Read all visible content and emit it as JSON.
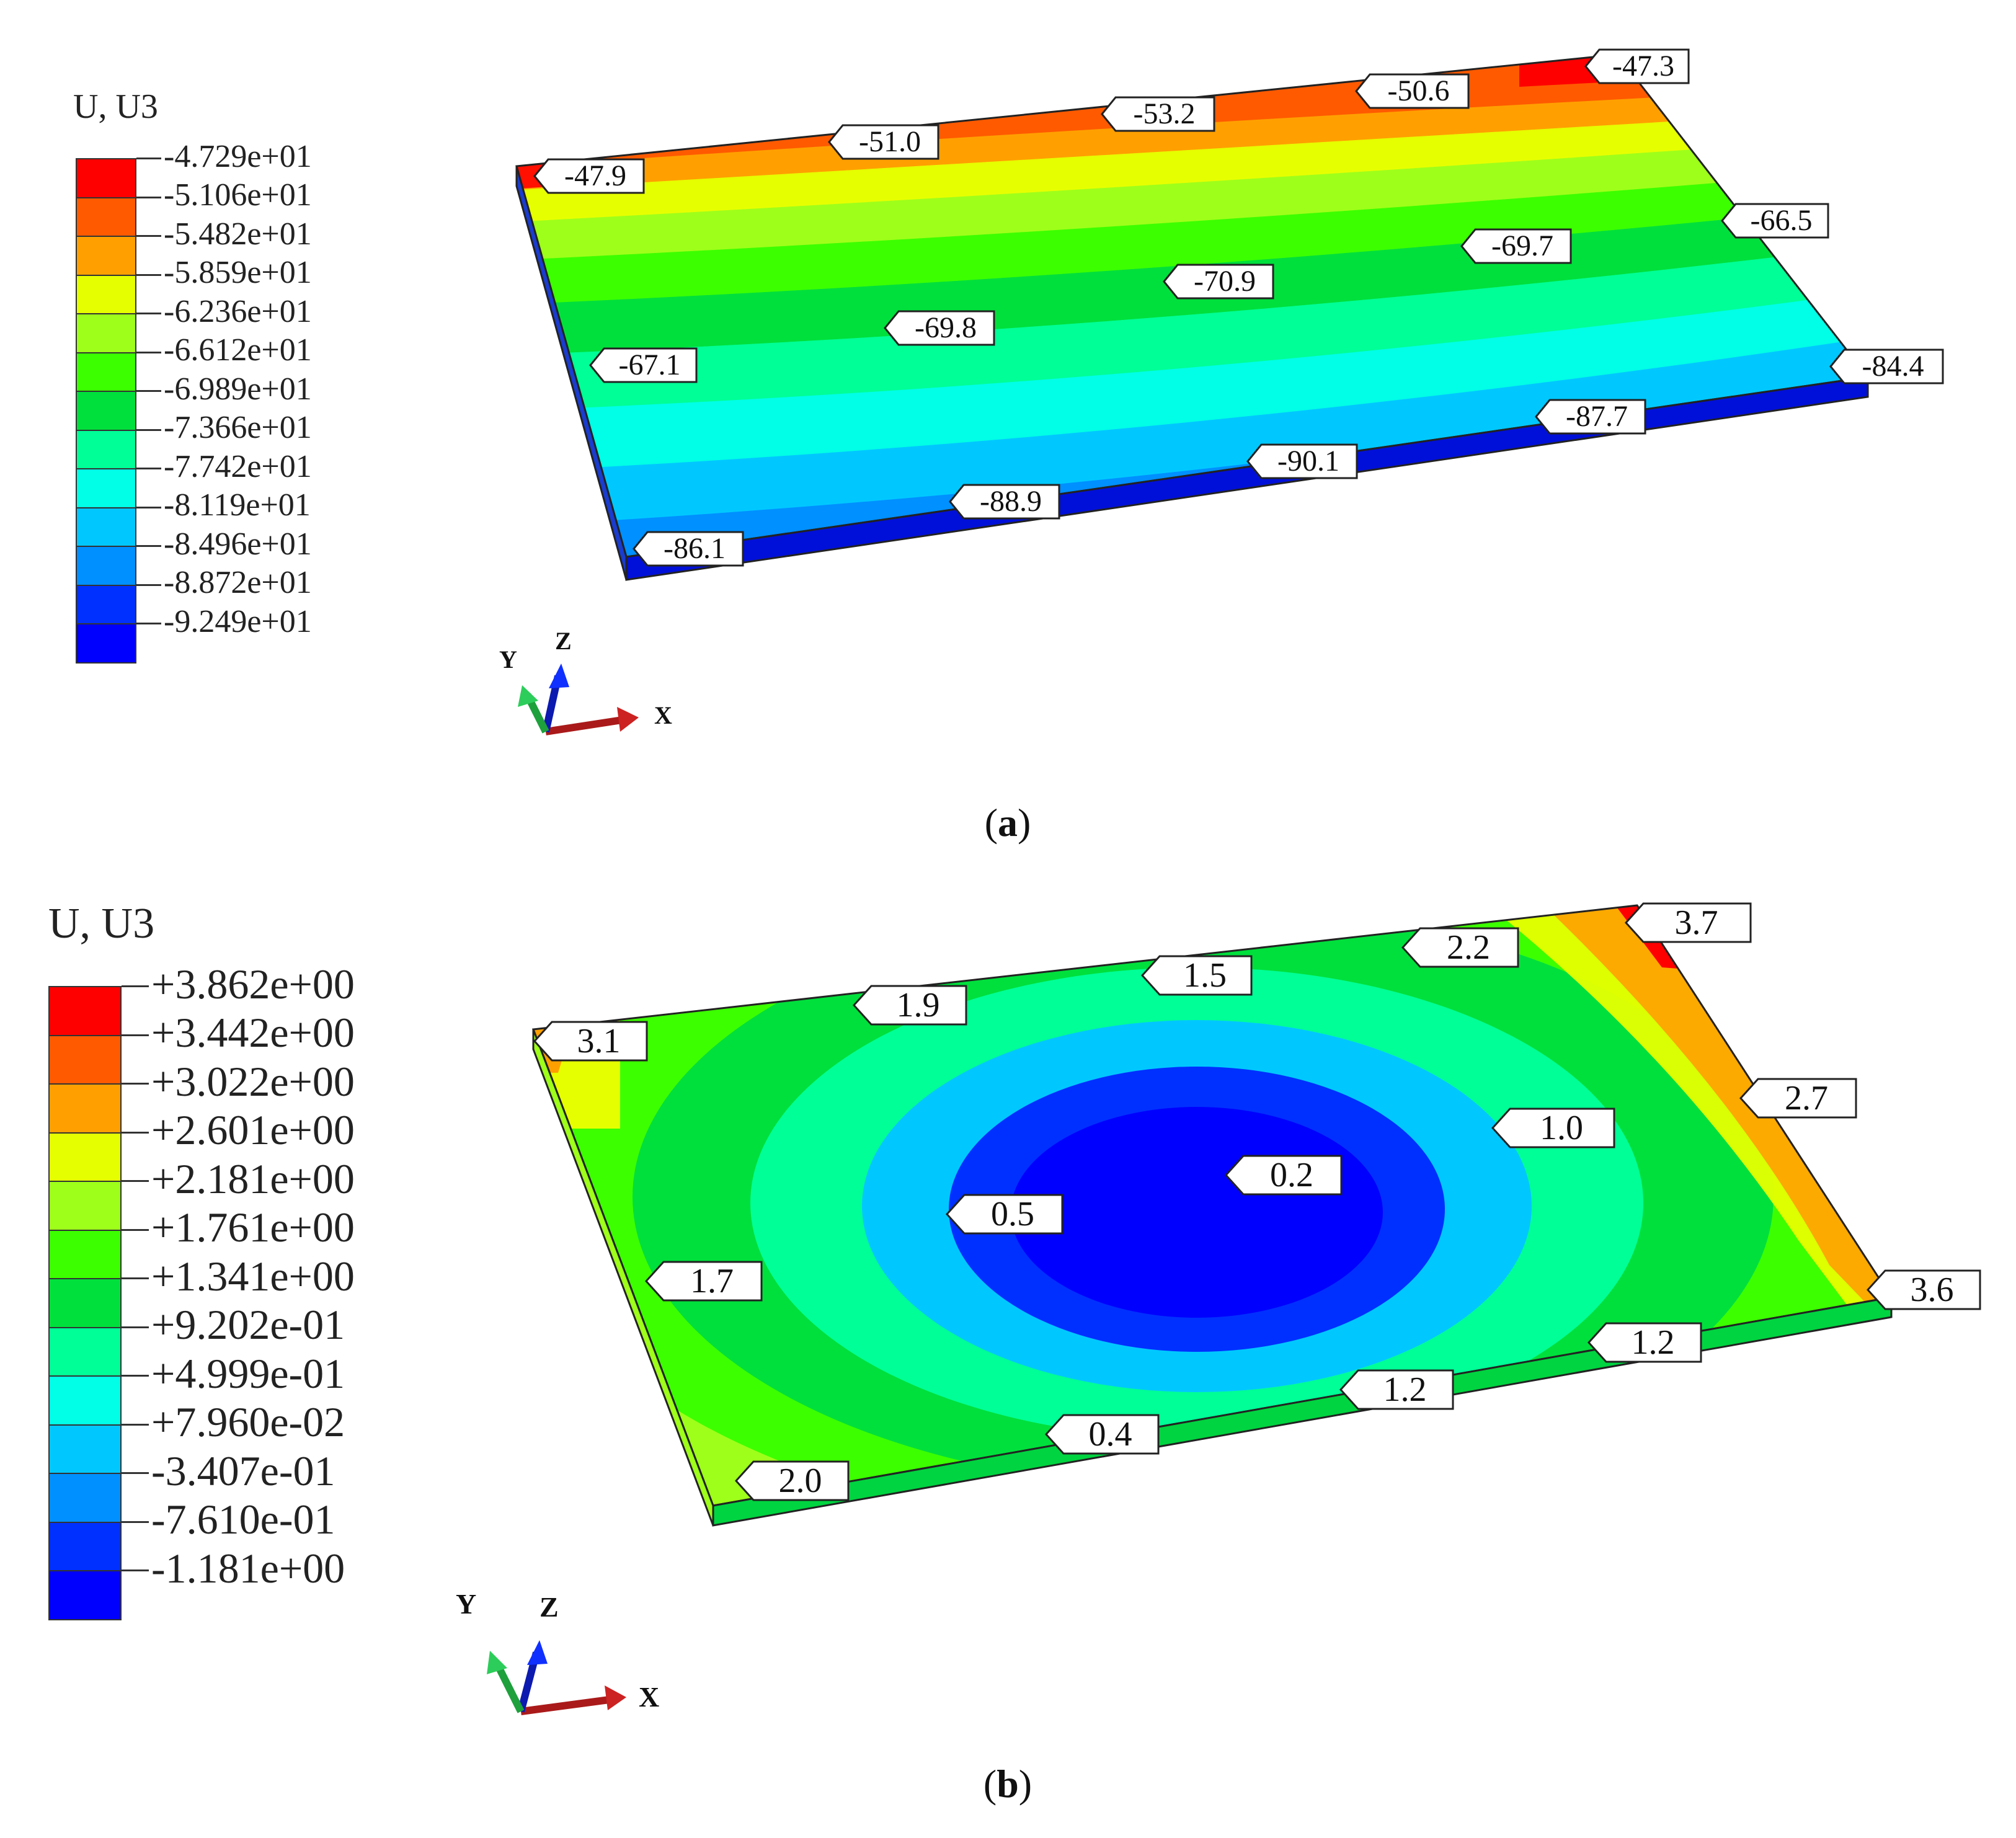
{
  "panels": [
    {
      "id": "a",
      "caption_letter": "a",
      "legend_title": "U, U3",
      "legend": {
        "values": [
          "-4.729e+01",
          "-5.106e+01",
          "-5.482e+01",
          "-5.859e+01",
          "-6.236e+01",
          "-6.612e+01",
          "-6.989e+01",
          "-7.366e+01",
          "-7.742e+01",
          "-8.119e+01",
          "-8.496e+01",
          "-8.872e+01",
          "-9.249e+01"
        ],
        "colors": [
          "#ff0000",
          "#ff5a00",
          "#ffa000",
          "#e6ff00",
          "#9eff1a",
          "#3cff00",
          "#00e03c",
          "#00ff96",
          "#00ffe6",
          "#00c8ff",
          "#0090ff",
          "#0030ff",
          "#0000ff"
        ]
      },
      "callouts": [
        {
          "label": "-47.3"
        },
        {
          "label": "-50.6"
        },
        {
          "label": "-53.2"
        },
        {
          "label": "-51.0"
        },
        {
          "label": "-47.9"
        },
        {
          "label": "-66.5"
        },
        {
          "label": "-69.7"
        },
        {
          "label": "-70.9"
        },
        {
          "label": "-69.8"
        },
        {
          "label": "-67.1"
        },
        {
          "label": "-84.4"
        },
        {
          "label": "-87.7"
        },
        {
          "label": "-90.1"
        },
        {
          "label": "-88.9"
        },
        {
          "label": "-86.1"
        }
      ],
      "triad": {
        "x": "X",
        "y": "Y",
        "z": "Z"
      }
    },
    {
      "id": "b",
      "caption_letter": "b",
      "legend_title": "U, U3",
      "legend": {
        "values": [
          "+3.862e+00",
          "+3.442e+00",
          "+3.022e+00",
          "+2.601e+00",
          "+2.181e+00",
          "+1.761e+00",
          "+1.341e+00",
          "+9.202e-01",
          "+4.999e-01",
          "+7.960e-02",
          "-3.407e-01",
          "-7.610e-01",
          "-1.181e+00"
        ],
        "colors": [
          "#ff0000",
          "#ff5a00",
          "#ffa000",
          "#e6ff00",
          "#9eff1a",
          "#3cff00",
          "#00e03c",
          "#00ff96",
          "#00ffe6",
          "#00c8ff",
          "#0090ff",
          "#0030ff",
          "#0000ff"
        ]
      },
      "callouts": [
        {
          "label": "3.7"
        },
        {
          "label": "2.2"
        },
        {
          "label": "1.5"
        },
        {
          "label": "1.9"
        },
        {
          "label": "3.1"
        },
        {
          "label": "2.7"
        },
        {
          "label": "1.0"
        },
        {
          "label": "0.2"
        },
        {
          "label": "0.5"
        },
        {
          "label": "1.7"
        },
        {
          "label": "3.6"
        },
        {
          "label": "1.2"
        },
        {
          "label": "1.2"
        },
        {
          "label": "0.4"
        },
        {
          "label": "2.0"
        }
      ],
      "triad": {
        "x": "X",
        "y": "Y",
        "z": "Z"
      }
    }
  ]
}
